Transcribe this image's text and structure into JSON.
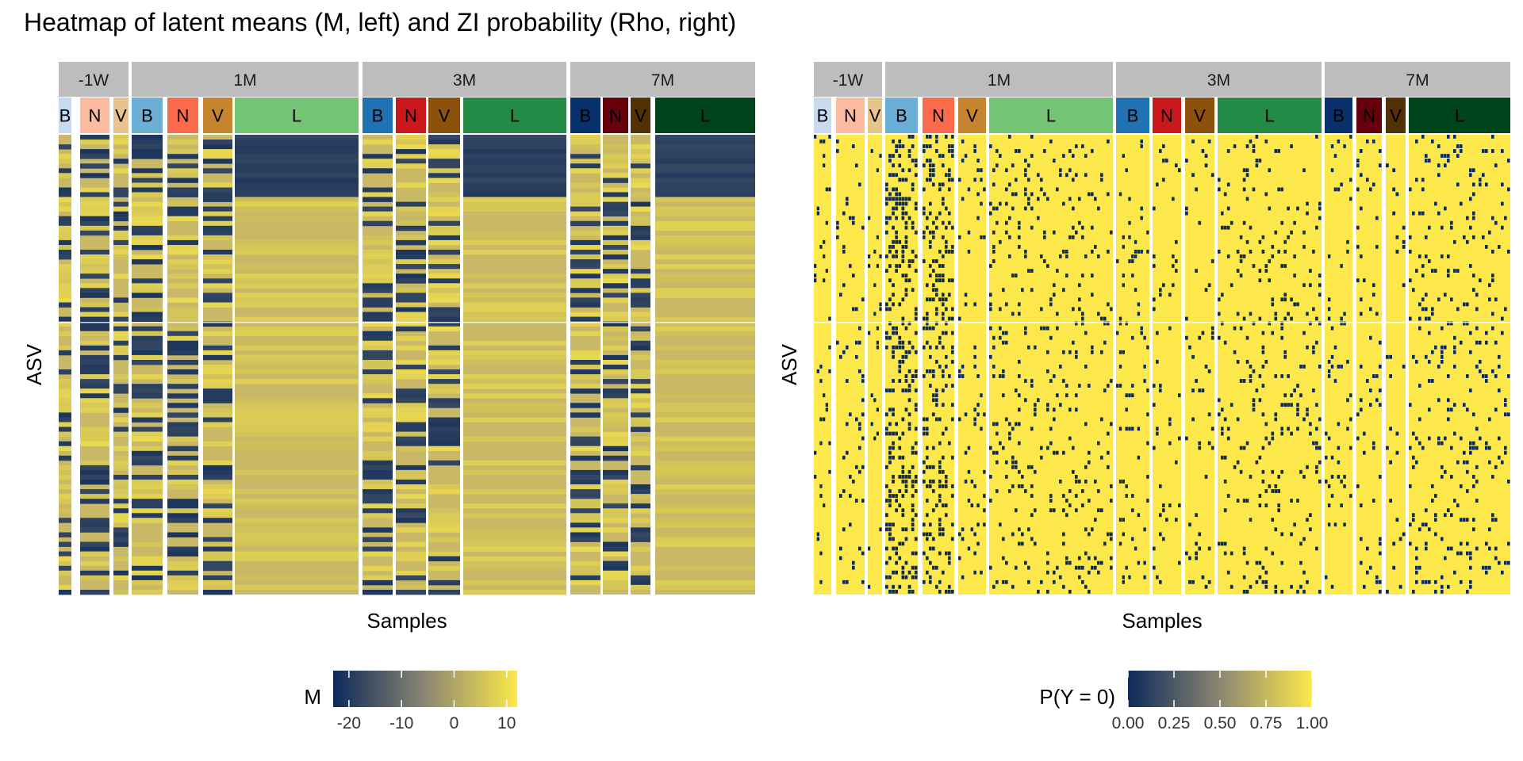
{
  "title": "Heatmap of latent means (M, left) and ZI probability (Rho, right)",
  "colors": {
    "strip_gray": "#bdbdbd",
    "low": "#0d2a5a",
    "mid": "#8c8772",
    "high": "#fce84a",
    "group_colors": {
      "-1W": {
        "B": "#c6dbef",
        "N": "#fcbba1",
        "V": "#e8c48a"
      },
      "1M": {
        "B": "#6baed6",
        "N": "#fb6a4a",
        "V": "#c5842e",
        "L": "#74c476"
      },
      "3M": {
        "B": "#2171b5",
        "N": "#cb181d",
        "V": "#8c510a",
        "L": "#238b45"
      },
      "7M": {
        "B": "#08306b",
        "N": "#67000d",
        "V": "#543005",
        "L": "#00441b"
      }
    }
  },
  "chart_data": [
    {
      "type": "heatmap",
      "id": "M",
      "xlabel": "Samples",
      "ylabel": "ASV",
      "facets": [
        {
          "label": "-1W",
          "groups": [
            "B",
            "N",
            "V"
          ]
        },
        {
          "label": "1M",
          "groups": [
            "B",
            "N",
            "V",
            "L"
          ]
        },
        {
          "label": "3M",
          "groups": [
            "B",
            "N",
            "V",
            "L"
          ]
        },
        {
          "label": "7M",
          "groups": [
            "B",
            "N",
            "V",
            "L"
          ]
        }
      ],
      "legend": {
        "title": "M",
        "ticks": [
          "-20",
          "-10",
          "0",
          "10"
        ],
        "tick_values": [
          -20,
          -10,
          0,
          10
        ],
        "range": [
          -23,
          12
        ]
      }
    },
    {
      "type": "heatmap",
      "id": "Rho",
      "xlabel": "Samples",
      "ylabel": "ASV",
      "facets": [
        {
          "label": "-1W",
          "groups": [
            "B",
            "N",
            "V"
          ]
        },
        {
          "label": "1M",
          "groups": [
            "B",
            "N",
            "V",
            "L"
          ]
        },
        {
          "label": "3M",
          "groups": [
            "B",
            "N",
            "V",
            "L"
          ]
        },
        {
          "label": "7M",
          "groups": [
            "B",
            "N",
            "V",
            "L"
          ]
        }
      ],
      "legend": {
        "title": "P(Y = 0)",
        "ticks": [
          "0.00",
          "0.25",
          "0.50",
          "0.75",
          "1.00"
        ],
        "tick_values": [
          0,
          0.25,
          0.5,
          0.75,
          1
        ],
        "range": [
          0,
          1
        ]
      }
    }
  ]
}
